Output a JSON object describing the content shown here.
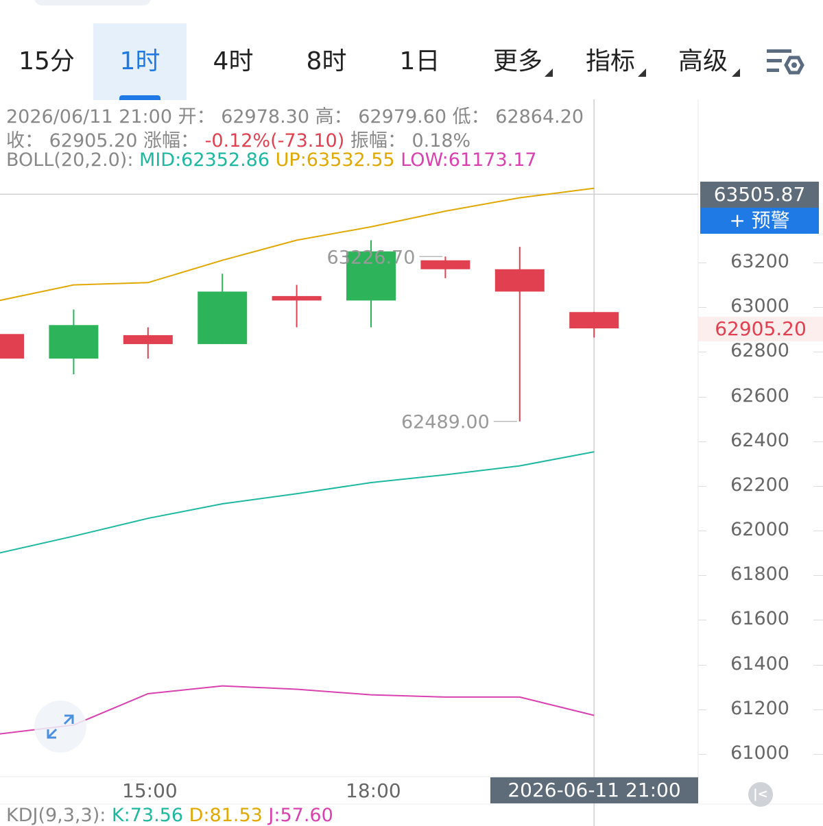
{
  "tabs": [
    {
      "label": "15分",
      "active": false
    },
    {
      "label": "1时",
      "active": true
    },
    {
      "label": "4时",
      "active": false
    },
    {
      "label": "8时",
      "active": false
    },
    {
      "label": "1日",
      "active": false
    },
    {
      "label": "更多",
      "active": false,
      "dropdown": true
    },
    {
      "label": "指标",
      "active": false,
      "dropdown": true
    },
    {
      "label": "高级",
      "active": false,
      "dropdown": true
    }
  ],
  "settings_icon": "chart-settings-icon",
  "info": {
    "datetime": "2026/06/11 21:00",
    "open_label": "开：",
    "open": "62978.30",
    "high_label": "高：",
    "high": "62979.60",
    "low_label": "低：",
    "low": "62864.20",
    "close_label": "收：",
    "close": "62905.20",
    "change_label": "涨幅：",
    "change": "-0.12%(-73.10)",
    "amplitude_label": "振幅：",
    "amplitude": "0.18%",
    "boll_label": "BOLL(20,2.0):",
    "boll_mid": "MID:62352.86",
    "boll_up": "UP:63532.55",
    "boll_low": "LOW:61173.17"
  },
  "price_axis": [
    "63200",
    "63000",
    "62800",
    "62600",
    "62400",
    "62200",
    "62000",
    "61800",
    "61600",
    "61400",
    "61200",
    "61000"
  ],
  "crosshair_price": "63505.87",
  "alert_button": "+ 预警",
  "last_price": "62905.20",
  "time_axis": [
    "15:00",
    "18:00"
  ],
  "crosshair_time": "2026-06-11 21:00",
  "kdj": {
    "label": "KDJ(9,3,3):",
    "k": "K:73.56",
    "d": "D:81.53",
    "j": "J:57.60"
  },
  "colors": {
    "up": "#2db45a",
    "down": "#e0404f",
    "boll_up": "#e0a800",
    "boll_mid": "#1cb8a0",
    "boll_low": "#d940b0",
    "accent": "#1f7ae6"
  },
  "chart_data": {
    "type": "candlestick",
    "ylim": [
      60970,
      63510
    ],
    "candles": [
      {
        "open": 62880,
        "close": 62770,
        "high": 62880,
        "low": 62770
      },
      {
        "open": 62770,
        "close": 62920,
        "high": 62990,
        "low": 62700
      },
      {
        "open": 62875,
        "close": 62835,
        "high": 62910,
        "low": 62770
      },
      {
        "open": 62835,
        "close": 63070,
        "high": 63150,
        "low": 62835
      },
      {
        "open": 63050,
        "close": 63030,
        "high": 63100,
        "low": 62910
      },
      {
        "open": 63030,
        "close": 63250,
        "high": 63300,
        "low": 62910
      },
      {
        "open": 63210,
        "close": 63170,
        "high": 63226.7,
        "low": 63130
      },
      {
        "open": 63170,
        "close": 63070,
        "high": 63270,
        "low": 62489.0
      },
      {
        "open": 62978.3,
        "close": 62905.2,
        "high": 62979.6,
        "low": 62864.2
      }
    ],
    "annotations": [
      {
        "text": "63226.70",
        "candle": 6,
        "value": 63226.7
      },
      {
        "text": "62489.00",
        "candle": 7,
        "value": 62489.0
      }
    ],
    "boll_up": [
      63030,
      63100,
      63110,
      63210,
      63300,
      63360,
      63430,
      63490,
      63532.55
    ],
    "boll_mid": [
      61900,
      61975,
      62055,
      62120,
      62165,
      62215,
      62250,
      62290,
      62352.86
    ],
    "boll_low": [
      61090,
      61130,
      61270,
      61305,
      61290,
      61265,
      61255,
      61255,
      61173.17
    ]
  }
}
